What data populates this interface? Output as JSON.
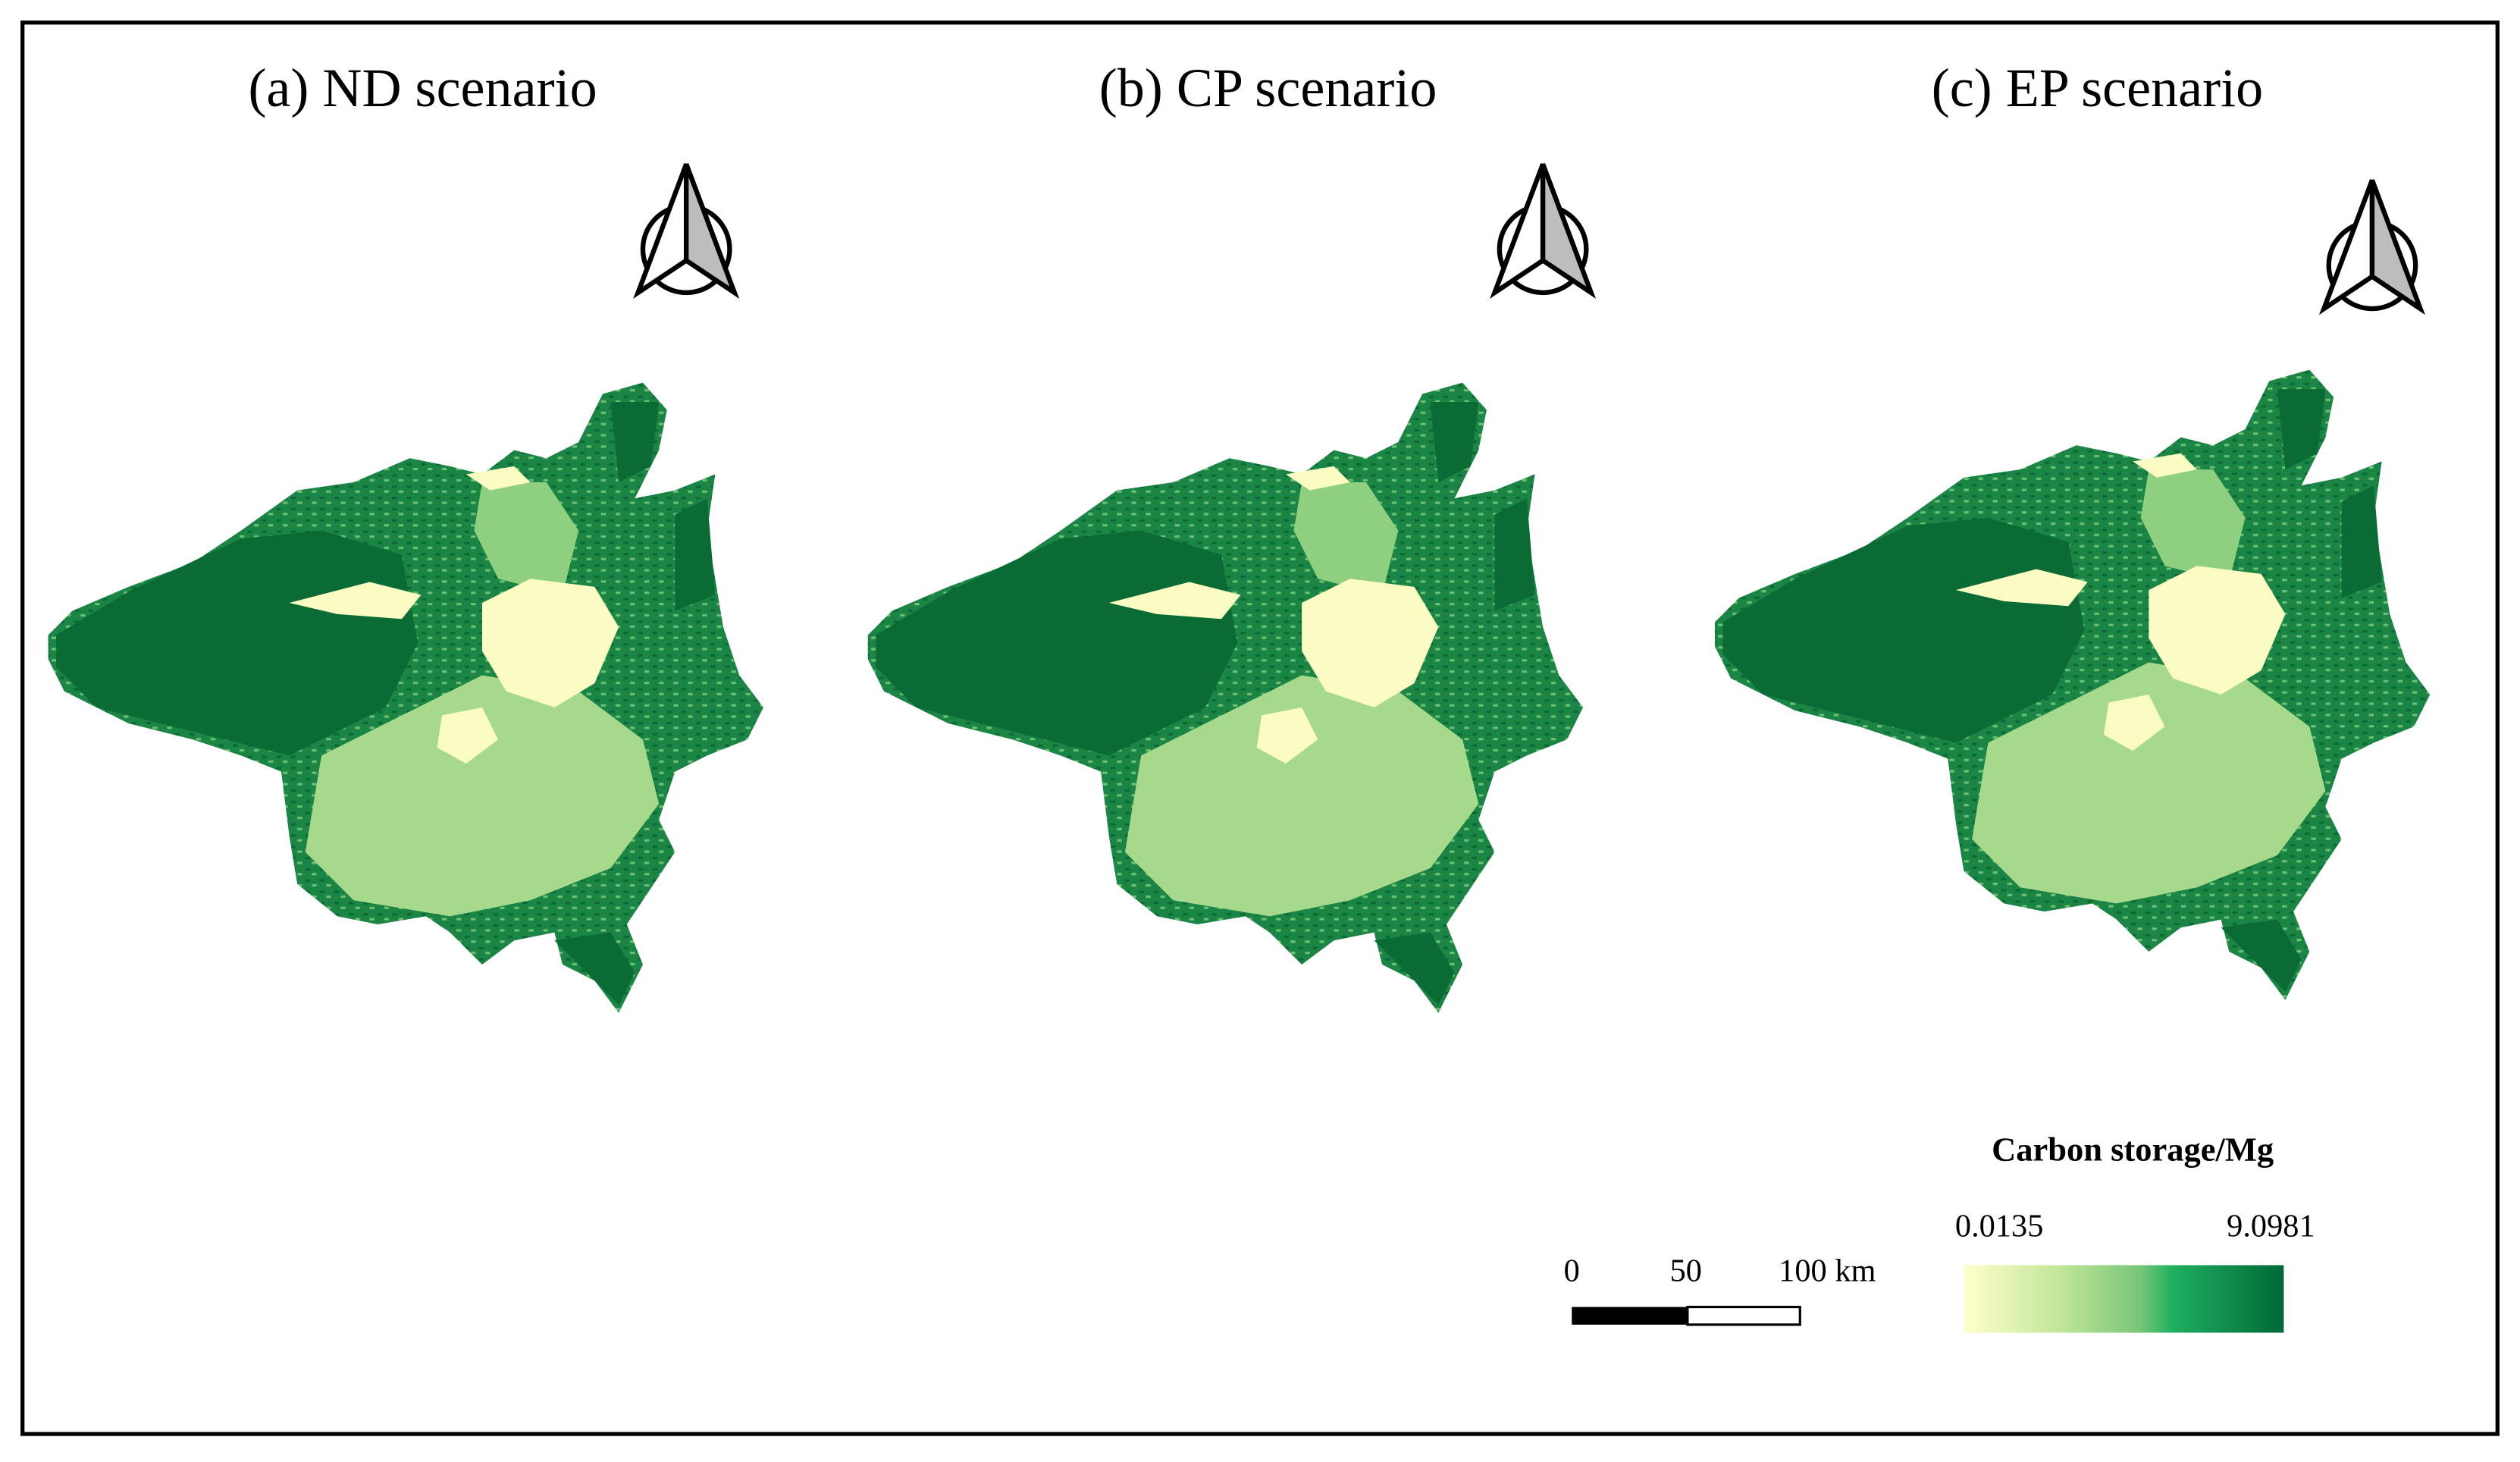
{
  "panels": [
    {
      "title": "(a) ND scenario"
    },
    {
      "title": "(b) CP scenario"
    },
    {
      "title": "(c) EP scenario"
    }
  ],
  "scale_bar": {
    "labels": [
      "0",
      "50",
      "100 km"
    ]
  },
  "legend": {
    "title": "Carbon storage/Mg",
    "min": "0.0135",
    "max": "9.0981"
  }
}
